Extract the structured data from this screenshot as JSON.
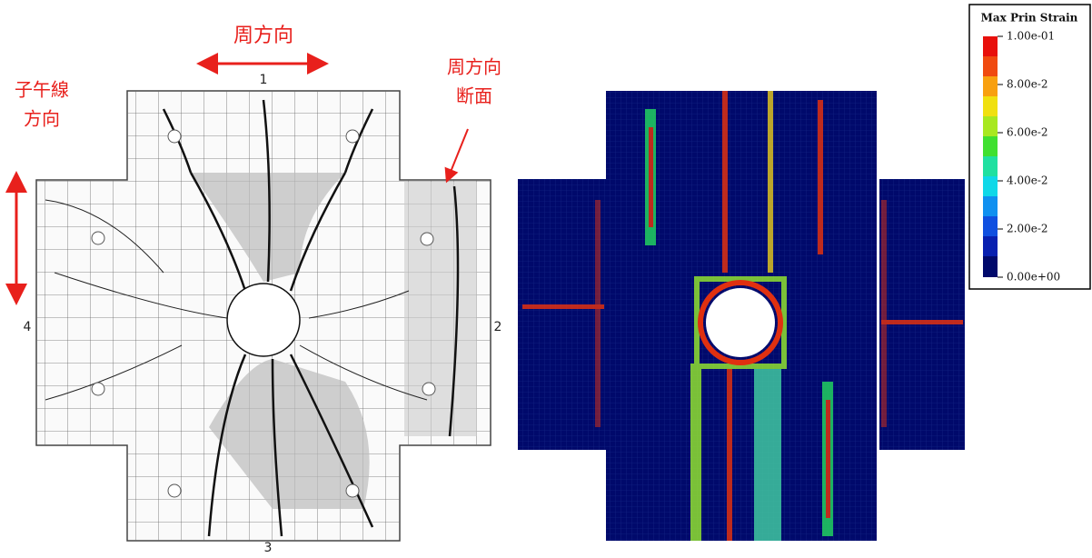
{
  "left_figure": {
    "circumferential_label": "周方向",
    "meridian_label": [
      "子午線",
      "方向"
    ],
    "section_label": [
      "周方向",
      "断面"
    ],
    "side_numbers": [
      "1",
      "2",
      "3",
      "4"
    ]
  },
  "legend": {
    "title": "Max Prin Strain",
    "ticks": [
      "1.00e-01",
      "8.00e-2",
      "6.00e-2",
      "4.00e-2",
      "2.00e-2",
      "0.00e+00"
    ]
  }
}
